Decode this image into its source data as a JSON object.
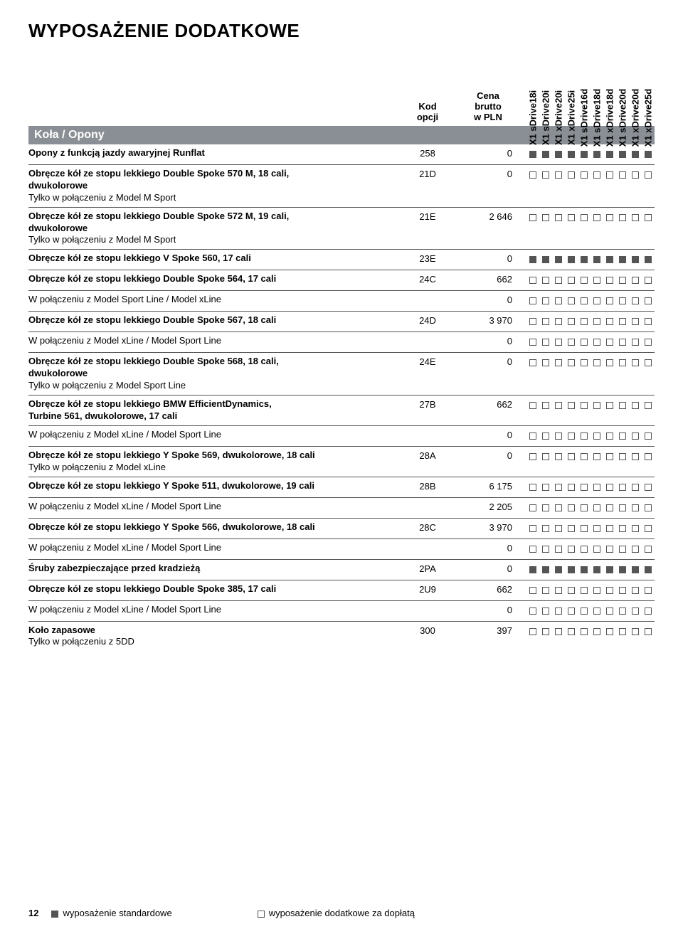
{
  "page_title": "WYPOSAŻENIE DODATKOWE",
  "columns": {
    "kod": [
      "Kod",
      "opcji"
    ],
    "cena": [
      "Cena",
      "brutto",
      "w PLN"
    ]
  },
  "variants": [
    "X1 sDrive18i",
    "X1 sDrive20i",
    "X1 xDrive20i",
    "X1 xDrive25i",
    "X1 sDrive16d",
    "X1 sDrive18d",
    "X1 xDrive18d",
    "X1 sDrive20d",
    "X1 xDrive20d",
    "X1 xDrive25d"
  ],
  "section": "Koła / Opony",
  "rows": [
    {
      "lines": [
        {
          "t": "Opony z funkcją jazdy awaryjnej Runflat",
          "b": true
        }
      ],
      "kod": "258",
      "cena": "0",
      "marks": "f",
      "sub": false
    },
    {
      "lines": [
        {
          "t": "Obręcze kół ze stopu lekkiego Double Spoke 570 M, 18 cali,",
          "b": true
        },
        {
          "t": "dwukolorowe",
          "b": true
        },
        {
          "t": "Tylko w połączeniu z Model M Sport",
          "b": false
        }
      ],
      "kod": "21D",
      "cena": "0",
      "marks": "e",
      "sub": false
    },
    {
      "lines": [
        {
          "t": "Obręcze kół ze stopu lekkiego Double Spoke 572 M, 19 cali,",
          "b": true
        },
        {
          "t": "dwukolorowe",
          "b": true
        },
        {
          "t": "Tylko w połączeniu z Model M Sport",
          "b": false
        }
      ],
      "kod": "21E",
      "cena": "2 646",
      "marks": "e",
      "sub": false
    },
    {
      "lines": [
        {
          "t": "Obręcze kół ze stopu lekkiego V Spoke 560, 17 cali",
          "b": true
        }
      ],
      "kod": "23E",
      "cena": "0",
      "marks": "f",
      "sub": false
    },
    {
      "lines": [
        {
          "t": "Obręcze kół ze stopu lekkiego Double Spoke 564, 17 cali",
          "b": true
        }
      ],
      "kod": "24C",
      "cena": "662",
      "marks": "e",
      "sub": false
    },
    {
      "lines": [
        {
          "t": "W połączeniu z Model Sport Line / Model xLine",
          "b": false
        }
      ],
      "kod": "",
      "cena": "0",
      "marks": "e",
      "sub": true
    },
    {
      "lines": [
        {
          "t": "Obręcze kół ze stopu lekkiego Double Spoke 567, 18 cali",
          "b": true
        }
      ],
      "kod": "24D",
      "cena": "3 970",
      "marks": "e",
      "sub": false
    },
    {
      "lines": [
        {
          "t": "W połączeniu z Model xLine / Model Sport Line",
          "b": false
        }
      ],
      "kod": "",
      "cena": "0",
      "marks": "e",
      "sub": true
    },
    {
      "lines": [
        {
          "t": "Obręcze kół ze stopu lekkiego Double Spoke 568, 18 cali,",
          "b": true
        },
        {
          "t": "dwukolorowe",
          "b": true
        },
        {
          "t": "Tylko w połączeniu z Model Sport Line",
          "b": false
        }
      ],
      "kod": "24E",
      "cena": "0",
      "marks": "e",
      "sub": false
    },
    {
      "lines": [
        {
          "t": "Obręcze kół ze stopu lekkiego BMW EfficientDynamics,",
          "b": true
        },
        {
          "t": "Turbine 561, dwukolorowe, 17 cali",
          "b": true
        }
      ],
      "kod": "27B",
      "cena": "662",
      "marks": "e",
      "sub": false
    },
    {
      "lines": [
        {
          "t": "W połączeniu z Model xLine / Model Sport Line",
          "b": false
        }
      ],
      "kod": "",
      "cena": "0",
      "marks": "e",
      "sub": true
    },
    {
      "lines": [
        {
          "t": "Obręcze kół ze stopu lekkiego Y Spoke 569, dwukolorowe, 18 cali",
          "b": true
        },
        {
          "t": "Tylko w połączeniu z Model xLine",
          "b": false
        }
      ],
      "kod": "28A",
      "cena": "0",
      "marks": "e",
      "sub": false
    },
    {
      "lines": [
        {
          "t": "Obręcze kół ze stopu lekkiego Y Spoke 511, dwukolorowe, 19 cali",
          "b": true
        }
      ],
      "kod": "28B",
      "cena": "6 175",
      "marks": "e",
      "sub": false
    },
    {
      "lines": [
        {
          "t": "W połączeniu z Model xLine / Model Sport Line",
          "b": false
        }
      ],
      "kod": "",
      "cena": "2 205",
      "marks": "e",
      "sub": true
    },
    {
      "lines": [
        {
          "t": "Obręcze kół ze stopu lekkiego Y Spoke 566, dwukolorowe, 18 cali",
          "b": true
        }
      ],
      "kod": "28C",
      "cena": "3 970",
      "marks": "e",
      "sub": false
    },
    {
      "lines": [
        {
          "t": "W połączeniu z Model xLine / Model Sport Line",
          "b": false
        }
      ],
      "kod": "",
      "cena": "0",
      "marks": "e",
      "sub": true
    },
    {
      "lines": [
        {
          "t": "Śruby zabezpieczające przed kradzieżą",
          "b": true
        }
      ],
      "kod": "2PA",
      "cena": "0",
      "marks": "f",
      "sub": false
    },
    {
      "lines": [
        {
          "t": "Obręcze kół ze stopu lekkiego Double Spoke 385, 17 cali",
          "b": true
        }
      ],
      "kod": "2U9",
      "cena": "662",
      "marks": "e",
      "sub": false
    },
    {
      "lines": [
        {
          "t": "W połączeniu z Model xLine / Model Sport Line",
          "b": false
        }
      ],
      "kod": "",
      "cena": "0",
      "marks": "e",
      "sub": true
    },
    {
      "lines": [
        {
          "t": "Koło zapasowe",
          "b": true
        },
        {
          "t": "Tylko w połączeniu z 5DD",
          "b": false
        }
      ],
      "kod": "300",
      "cena": "397",
      "marks": "e",
      "sub": false
    }
  ],
  "footer": {
    "page": "12",
    "std": "wyposażenie standardowe",
    "opt": "wyposażenie dodatkowe za dopłatą"
  }
}
